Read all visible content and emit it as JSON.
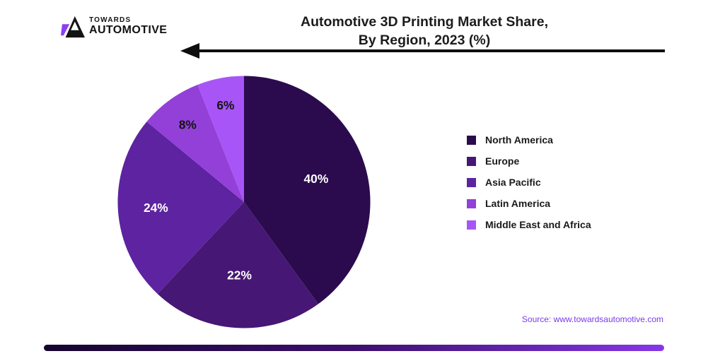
{
  "header": {
    "logo": {
      "top": "TOWARDS",
      "bottom": "AUTOMOTIVE"
    },
    "title_line1": "Automotive 3D Printing Market Share,",
    "title_line2": "By Region, 2023 (%)"
  },
  "chart_data": {
    "type": "pie",
    "title": "Automotive 3D Printing Market Share, By Region, 2023 (%)",
    "categories": [
      "North America",
      "Europe",
      "Asia Pacific",
      "Latin America",
      "Middle East and Africa"
    ],
    "values": [
      40,
      22,
      24,
      8,
      6
    ],
    "unit": "%",
    "start_angle_deg": 0,
    "direction": "clockwise",
    "legend_position": "right",
    "slices": [
      {
        "label": "North America",
        "value": 40,
        "color": "#2b0b4d",
        "label_text": "40%",
        "label_color": "#ffffff",
        "label_r": 0.6
      },
      {
        "label": "Europe",
        "value": 22,
        "color": "#461775",
        "label_text": "22%",
        "label_color": "#ffffff",
        "label_r": 0.58
      },
      {
        "label": "Asia Pacific",
        "value": 24,
        "color": "#5d23a0",
        "label_text": "24%",
        "label_color": "#ffffff",
        "label_r": 0.7
      },
      {
        "label": "Latin America",
        "value": 8,
        "color": "#9340d9",
        "label_text": "8%",
        "label_color": "#141414",
        "label_r": 0.76
      },
      {
        "label": "Middle East and Africa",
        "value": 6,
        "color": "#a855f7",
        "label_text": "6%",
        "label_color": "#141414",
        "label_r": 0.78
      }
    ]
  },
  "footer": {
    "source": "Source: www.towardsautomotive.com",
    "source_color": "#7c3aed",
    "bar_gradient": [
      "#15052e",
      "#3b0f6e",
      "#8637e8"
    ]
  }
}
